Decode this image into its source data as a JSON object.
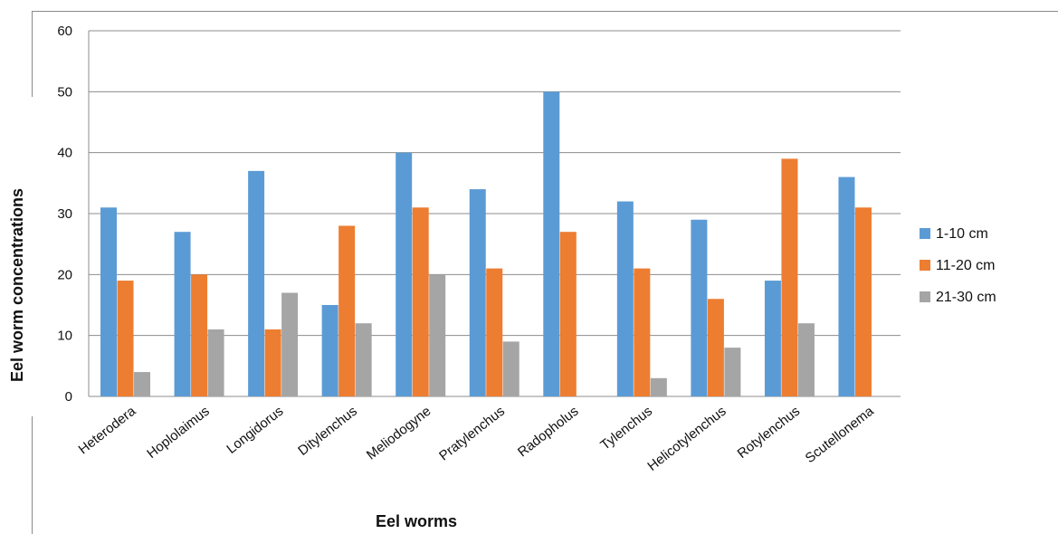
{
  "chart_data": {
    "type": "bar",
    "title": "",
    "xlabel": "Eel worms",
    "ylabel": "Eel worm concentrations",
    "ylim": [
      0,
      60
    ],
    "yticks": [
      "0",
      "10",
      "20",
      "30",
      "40",
      "50",
      "60"
    ],
    "grid": true,
    "legend_position": "right",
    "categories": [
      "Heterodera",
      "Hoplolaimus",
      "Longidorus",
      "Ditylenchus",
      "Meliodogyne",
      "Pratylenchus",
      "Radopholus",
      "Tylenchus",
      "Helicotylenchus",
      "Rotylenchus",
      "Scutellonema"
    ],
    "series": [
      {
        "name": "1-10 cm",
        "color": "#5b9bd5",
        "values": [
          31,
          27,
          37,
          15,
          40,
          34,
          50,
          32,
          29,
          19,
          36
        ]
      },
      {
        "name": "11-20 cm",
        "color": "#ed7d31",
        "values": [
          19,
          20,
          11,
          28,
          31,
          21,
          27,
          21,
          16,
          39,
          31
        ]
      },
      {
        "name": "21-30 cm",
        "color": "#a5a5a5",
        "values": [
          4,
          11,
          17,
          12,
          20,
          9,
          0,
          3,
          8,
          12,
          0
        ]
      }
    ]
  }
}
